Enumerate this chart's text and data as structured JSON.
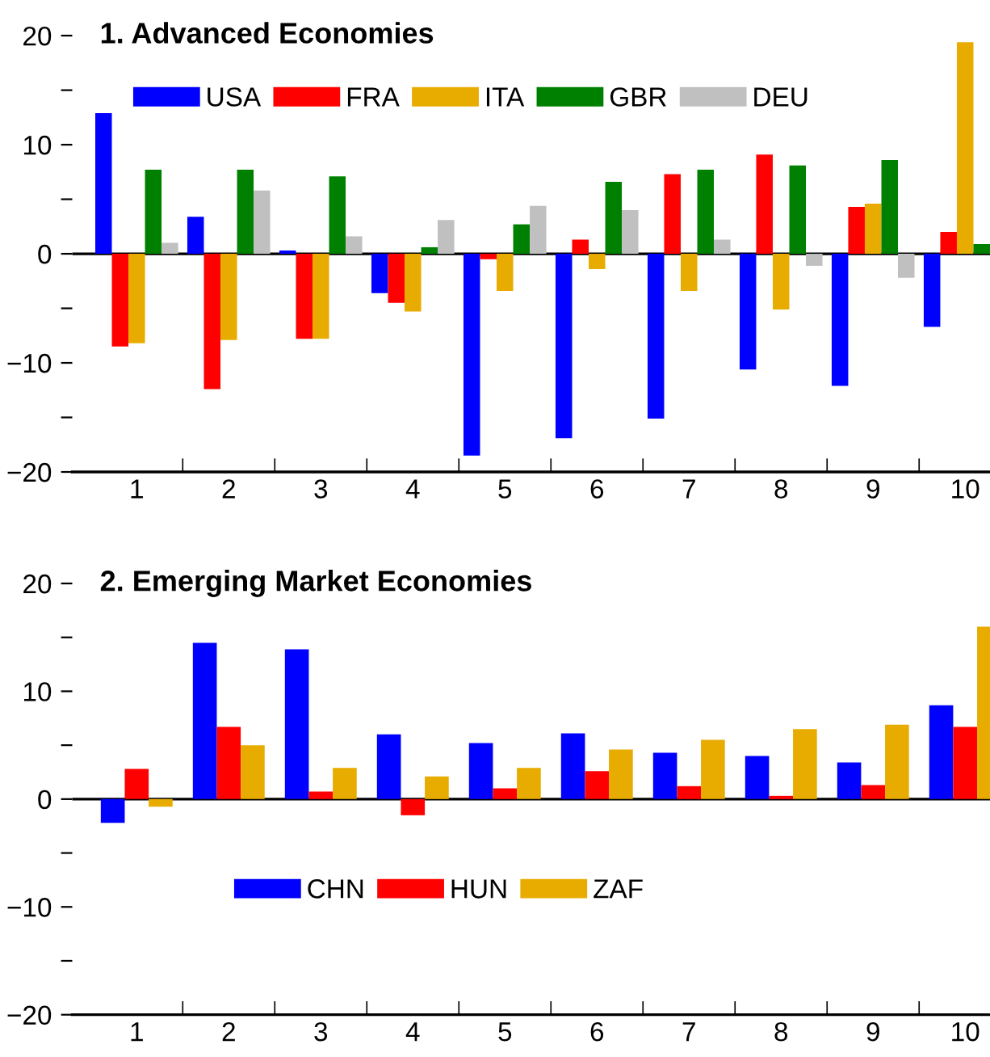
{
  "chart_data": [
    {
      "type": "bar",
      "title": "1. Advanced Economies",
      "categories": [
        "1",
        "2",
        "3",
        "4",
        "5",
        "6",
        "7",
        "8",
        "9",
        "10"
      ],
      "series": [
        {
          "name": "USA",
          "color": "#0000ff",
          "values": [
            12.9,
            3.4,
            0.3,
            -3.6,
            -18.5,
            -16.9,
            -15.1,
            -10.6,
            -12.1,
            -6.7
          ]
        },
        {
          "name": "FRA",
          "color": "#ff0000",
          "values": [
            -8.5,
            -12.4,
            -7.8,
            -4.5,
            -0.5,
            1.3,
            7.3,
            9.1,
            4.3,
            2.0
          ]
        },
        {
          "name": "ITA",
          "color": "#e8ac00",
          "values": [
            -8.2,
            -7.9,
            -7.8,
            -5.3,
            -3.4,
            -1.4,
            -3.4,
            -5.1,
            4.6,
            19.4
          ]
        },
        {
          "name": "GBR",
          "color": "#008000",
          "values": [
            7.7,
            7.7,
            7.1,
            0.6,
            2.7,
            6.6,
            7.7,
            8.1,
            8.6,
            0.9
          ]
        },
        {
          "name": "DEU",
          "color": "#c0c0c0",
          "values": [
            1.0,
            5.8,
            1.6,
            3.1,
            4.4,
            4.0,
            1.3,
            -1.1,
            -2.2,
            null
          ]
        }
      ],
      "ylim": [
        -20,
        20
      ],
      "yticks": [
        -20,
        {
          "value": -15,
          "label": null
        },
        -10,
        {
          "value": -5,
          "label": null
        },
        0,
        {
          "value": 5,
          "label": null
        },
        10,
        {
          "value": 15,
          "label": null
        },
        20
      ],
      "ref_lines": [
        {
          "axis": "y",
          "value": 0,
          "color": "#000000"
        }
      ],
      "legend": "top",
      "grid": false
    },
    {
      "type": "bar",
      "title": "2. Emerging Market Economies",
      "categories": [
        "1",
        "2",
        "3",
        "4",
        "5",
        "6",
        "7",
        "8",
        "9",
        "10"
      ],
      "series": [
        {
          "name": "CHN",
          "color": "#0000ff",
          "values": [
            -2.2,
            14.5,
            13.9,
            6.0,
            5.2,
            6.1,
            4.3,
            4.0,
            3.4,
            8.7
          ]
        },
        {
          "name": "HUN",
          "color": "#ff0000",
          "values": [
            2.8,
            6.7,
            0.7,
            -1.5,
            1.0,
            2.6,
            1.2,
            0.3,
            1.3,
            6.7
          ]
        },
        {
          "name": "ZAF",
          "color": "#e8ac00",
          "values": [
            -0.7,
            5.0,
            2.9,
            2.1,
            2.9,
            4.6,
            5.5,
            6.5,
            6.9,
            16.0
          ]
        }
      ],
      "ylim": [
        -20,
        20
      ],
      "yticks": [
        -20,
        {
          "value": -15,
          "label": null
        },
        -10,
        {
          "value": -5,
          "label": null
        },
        0,
        {
          "value": 5,
          "label": null
        },
        10,
        {
          "value": 15,
          "label": null
        },
        20
      ],
      "ref_lines": [
        {
          "axis": "y",
          "value": 0,
          "color": "#000000"
        }
      ],
      "legend": "bottom left",
      "grid": false
    }
  ]
}
